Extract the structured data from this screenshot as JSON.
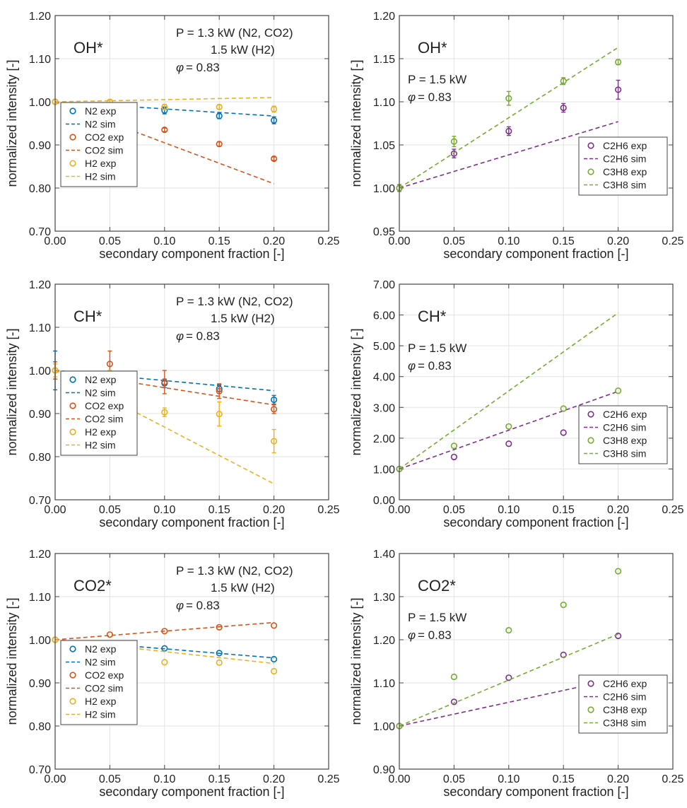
{
  "colors": {
    "N2": "#0072BD",
    "CO2": "#D95319",
    "H2": "#EDB120",
    "C2H6": "#7E2F8E",
    "C3H8": "#77AC30",
    "grid": "#e3e3e3",
    "axis": "#444444"
  },
  "chart_data": [
    {
      "type": "scatter",
      "id": "oh-dilutants",
      "species_label": "OH*",
      "annotation": [
        "P = 1.3 kW (N2, CO2)",
        "1.5 kW (H2)",
        "= 0.83"
      ],
      "phi_symbol": "φ",
      "xlabel": "secondary component fraction [-]",
      "ylabel": "normalized intensity [-]",
      "xlim": [
        0,
        0.25
      ],
      "ylim": [
        0.7,
        1.2
      ],
      "xticks": [
        "0.00",
        "0.05",
        "0.10",
        "0.15",
        "0.20",
        "0.25"
      ],
      "yticks": [
        "0.70",
        "0.80",
        "0.90",
        "1.00",
        "1.10",
        "1.20"
      ],
      "grid": true,
      "legend_position": "bottom-left",
      "series": [
        {
          "name": "N2 exp",
          "kind": "exp",
          "color_key": "N2",
          "x": [
            0,
            0.05,
            0.1,
            0.15,
            0.2
          ],
          "y": [
            1.0,
            0.983,
            0.98,
            0.967,
            0.957
          ],
          "err": [
            0.003,
            0.005,
            0.008,
            0.006,
            0.008
          ]
        },
        {
          "name": "N2 sim",
          "kind": "sim",
          "color_key": "N2",
          "x": [
            0,
            0.2
          ],
          "y": [
            1.0,
            0.967
          ]
        },
        {
          "name": "CO2 exp",
          "kind": "exp",
          "color_key": "CO2",
          "x": [
            0,
            0.05,
            0.1,
            0.15,
            0.2
          ],
          "y": [
            1.0,
            0.977,
            0.935,
            0.902,
            0.868
          ],
          "err": [
            0.003,
            0.004,
            0.004,
            0.005,
            0.004
          ]
        },
        {
          "name": "CO2 sim",
          "kind": "sim",
          "color_key": "CO2",
          "x": [
            0,
            0.2
          ],
          "y": [
            1.0,
            0.81
          ]
        },
        {
          "name": "H2 exp",
          "kind": "exp",
          "color_key": "H2",
          "x": [
            0,
            0.05,
            0.1,
            0.15,
            0.2
          ],
          "y": [
            1.0,
            1.0,
            0.988,
            0.988,
            0.983
          ],
          "err": [
            0.003,
            0.004,
            0.006,
            0.005,
            0.007
          ]
        },
        {
          "name": "H2 sim",
          "kind": "sim",
          "color_key": "H2",
          "x": [
            0,
            0.2
          ],
          "y": [
            1.0,
            1.01
          ]
        }
      ]
    },
    {
      "type": "scatter",
      "id": "oh-fuels",
      "species_label": "OH*",
      "annotation": [
        "P = 1.5 kW",
        "= 0.83"
      ],
      "phi_symbol": "φ",
      "xlabel": "secondary component fraction [-]",
      "ylabel": "normalized intensity [-]",
      "xlim": [
        0,
        0.25
      ],
      "ylim": [
        0.95,
        1.2
      ],
      "xticks": [
        "0.00",
        "0.05",
        "0.10",
        "0.15",
        "0.20",
        "0.25"
      ],
      "yticks": [
        "0.95",
        "1.00",
        "1.05",
        "1.10",
        "1.15",
        "1.20"
      ],
      "grid": true,
      "legend_position": "bottom-right",
      "series": [
        {
          "name": "C2H6 exp",
          "kind": "exp",
          "color_key": "C2H6",
          "x": [
            0,
            0.05,
            0.1,
            0.15,
            0.2
          ],
          "y": [
            1.0,
            1.04,
            1.066,
            1.093,
            1.114
          ],
          "err": [
            0.004,
            0.005,
            0.005,
            0.005,
            0.011
          ]
        },
        {
          "name": "C2H6 sim",
          "kind": "sim",
          "color_key": "C2H6",
          "x": [
            0,
            0.2
          ],
          "y": [
            1.0,
            1.077
          ]
        },
        {
          "name": "C3H8 exp",
          "kind": "exp",
          "color_key": "C3H8",
          "x": [
            0,
            0.05,
            0.1,
            0.15,
            0.2
          ],
          "y": [
            1.0,
            1.054,
            1.104,
            1.124,
            1.146
          ],
          "err": [
            0.004,
            0.006,
            0.008,
            0.004,
            0.003
          ]
        },
        {
          "name": "C3H8 sim",
          "kind": "sim",
          "color_key": "C3H8",
          "x": [
            0,
            0.2
          ],
          "y": [
            1.0,
            1.163
          ]
        }
      ]
    },
    {
      "type": "scatter",
      "id": "ch-dilutants",
      "species_label": "CH*",
      "annotation": [
        "P = 1.3 kW (N2, CO2)",
        "1.5 kW (H2)",
        "= 0.83"
      ],
      "phi_symbol": "φ",
      "xlabel": "secondary component fraction [-]",
      "ylabel": "normalized intensity [-]",
      "xlim": [
        0,
        0.25
      ],
      "ylim": [
        0.7,
        1.2
      ],
      "xticks": [
        "0.00",
        "0.05",
        "0.10",
        "0.15",
        "0.20",
        "0.25"
      ],
      "yticks": [
        "0.70",
        "0.80",
        "0.90",
        "1.00",
        "1.10",
        "1.20"
      ],
      "grid": true,
      "legend_position": "bottom-left",
      "series": [
        {
          "name": "N2 exp",
          "kind": "exp",
          "color_key": "N2",
          "x": [
            0,
            0.05,
            0.1,
            0.15,
            0.2
          ],
          "y": [
            1.0,
            0.98,
            0.97,
            0.957,
            0.932
          ],
          "err": [
            0.045,
            0.01,
            0.01,
            0.01,
            0.01
          ]
        },
        {
          "name": "N2 sim",
          "kind": "sim",
          "color_key": "N2",
          "x": [
            0,
            0.2
          ],
          "y": [
            1.0,
            0.953
          ]
        },
        {
          "name": "CO2 exp",
          "kind": "exp",
          "color_key": "CO2",
          "x": [
            0,
            0.05,
            0.1,
            0.15,
            0.2
          ],
          "y": [
            1.0,
            1.015,
            0.973,
            0.952,
            0.91
          ],
          "err": [
            0.02,
            0.03,
            0.027,
            0.017,
            0.01
          ]
        },
        {
          "name": "CO2 sim",
          "kind": "sim",
          "color_key": "CO2",
          "x": [
            0,
            0.2
          ],
          "y": [
            1.0,
            0.92
          ]
        },
        {
          "name": "H2 exp",
          "kind": "exp",
          "color_key": "H2",
          "x": [
            0,
            0.05,
            0.1,
            0.15,
            0.2
          ],
          "y": [
            1.0,
            0.975,
            0.903,
            0.899,
            0.836
          ],
          "err": [
            0.015,
            0.025,
            0.01,
            0.028,
            0.027
          ]
        },
        {
          "name": "H2 sim",
          "kind": "sim",
          "color_key": "H2",
          "x": [
            0,
            0.2
          ],
          "y": [
            1.0,
            0.737
          ]
        }
      ]
    },
    {
      "type": "scatter",
      "id": "ch-fuels",
      "species_label": "CH*",
      "annotation": [
        "P = 1.5 kW",
        "= 0.83"
      ],
      "phi_symbol": "φ",
      "xlabel": "secondary component fraction [-]",
      "ylabel": "normalized intensity [-]",
      "xlim": [
        0,
        0.25
      ],
      "ylim": [
        0,
        7
      ],
      "xticks": [
        "0.00",
        "0.05",
        "0.10",
        "0.15",
        "0.20",
        "0.25"
      ],
      "yticks": [
        "0.00",
        "1.00",
        "2.00",
        "3.00",
        "4.00",
        "5.00",
        "6.00",
        "7.00"
      ],
      "grid": true,
      "legend_position": "bottom-right",
      "series": [
        {
          "name": "C2H6 exp",
          "kind": "exp",
          "color_key": "C2H6",
          "x": [
            0,
            0.05,
            0.1,
            0.15,
            0.2
          ],
          "y": [
            1.0,
            1.39,
            1.82,
            2.18,
            2.51
          ],
          "err": [
            0.02,
            0.02,
            0.02,
            0.02,
            0.02
          ]
        },
        {
          "name": "C2H6 sim",
          "kind": "sim",
          "color_key": "C2H6",
          "x": [
            0,
            0.2
          ],
          "y": [
            1.0,
            3.52
          ]
        },
        {
          "name": "C3H8 exp",
          "kind": "exp",
          "color_key": "C3H8",
          "x": [
            0,
            0.05,
            0.1,
            0.15,
            0.2
          ],
          "y": [
            1.0,
            1.75,
            2.38,
            2.96,
            3.54
          ],
          "err": [
            0.02,
            0.02,
            0.02,
            0.02,
            0.02
          ]
        },
        {
          "name": "C3H8 sim",
          "kind": "sim",
          "color_key": "C3H8",
          "x": [
            0,
            0.2
          ],
          "y": [
            1.0,
            6.07
          ]
        }
      ]
    },
    {
      "type": "scatter",
      "id": "co2-dilutants",
      "species_label": "CO2*",
      "annotation": [
        "P = 1.3 kW (N2, CO2)",
        "1.5 kW (H2)",
        "= 0.83"
      ],
      "phi_symbol": "φ",
      "xlabel": "secondary component fraction [-]",
      "ylabel": "normalized intensity [-]",
      "xlim": [
        0,
        0.25
      ],
      "ylim": [
        0.7,
        1.2
      ],
      "xticks": [
        "0.00",
        "0.05",
        "0.10",
        "0.15",
        "0.20",
        "0.25"
      ],
      "yticks": [
        "0.70",
        "0.80",
        "0.90",
        "1.00",
        "1.10",
        "1.20"
      ],
      "grid": true,
      "legend_position": "bottom-left",
      "series": [
        {
          "name": "N2 exp",
          "kind": "exp",
          "color_key": "N2",
          "x": [
            0,
            0.05,
            0.1,
            0.15,
            0.2
          ],
          "y": [
            1.0,
            0.99,
            0.98,
            0.969,
            0.955
          ],
          "err": [
            0.002,
            0.002,
            0.002,
            0.002,
            0.002
          ]
        },
        {
          "name": "N2 sim",
          "kind": "sim",
          "color_key": "N2",
          "x": [
            0,
            0.2
          ],
          "y": [
            1.0,
            0.958
          ]
        },
        {
          "name": "CO2 exp",
          "kind": "exp",
          "color_key": "CO2",
          "x": [
            0,
            0.05,
            0.1,
            0.15,
            0.2
          ],
          "y": [
            1.0,
            1.012,
            1.02,
            1.029,
            1.033
          ],
          "err": [
            0.002,
            0.002,
            0.002,
            0.002,
            0.002
          ]
        },
        {
          "name": "CO2 sim",
          "kind": "sim",
          "color_key": "CO2",
          "x": [
            0,
            0.2
          ],
          "y": [
            1.0,
            1.04
          ]
        },
        {
          "name": "H2 exp",
          "kind": "exp",
          "color_key": "H2",
          "x": [
            0,
            0.05,
            0.1,
            0.15,
            0.2
          ],
          "y": [
            1.0,
            0.963,
            0.948,
            0.947,
            0.927
          ],
          "err": [
            0.002,
            0.002,
            0.002,
            0.002,
            0.002
          ]
        },
        {
          "name": "H2 sim",
          "kind": "sim",
          "color_key": "H2",
          "x": [
            0,
            0.2
          ],
          "y": [
            1.0,
            0.945
          ]
        }
      ]
    },
    {
      "type": "scatter",
      "id": "co2-fuels",
      "species_label": "CO2*",
      "annotation": [
        "P = 1.5 kW",
        "= 0.83"
      ],
      "phi_symbol": "φ",
      "xlabel": "secondary component fraction [-]",
      "ylabel": "normalized intensity [-]",
      "xlim": [
        0,
        0.25
      ],
      "ylim": [
        0.9,
        1.4
      ],
      "xticks": [
        "0.00",
        "0.05",
        "0.10",
        "0.15",
        "0.20",
        "0.25"
      ],
      "yticks": [
        "0.90",
        "1.00",
        "1.10",
        "1.20",
        "1.30",
        "1.40"
      ],
      "grid": true,
      "legend_position": "bottom-right",
      "series": [
        {
          "name": "C2H6 exp",
          "kind": "exp",
          "color_key": "C2H6",
          "x": [
            0,
            0.05,
            0.1,
            0.15,
            0.2
          ],
          "y": [
            1.0,
            1.056,
            1.112,
            1.165,
            1.209
          ],
          "err": [
            0.002,
            0.002,
            0.002,
            0.002,
            0.002
          ]
        },
        {
          "name": "C2H6 sim",
          "kind": "sim",
          "color_key": "C2H6",
          "x": [
            0,
            0.2
          ],
          "y": [
            1.0,
            1.11
          ]
        },
        {
          "name": "C3H8 exp",
          "kind": "exp",
          "color_key": "C3H8",
          "x": [
            0,
            0.05,
            0.1,
            0.15,
            0.2
          ],
          "y": [
            1.0,
            1.114,
            1.222,
            1.281,
            1.359
          ],
          "err": [
            0.002,
            0.002,
            0.002,
            0.002,
            0.002
          ]
        },
        {
          "name": "C3H8 sim",
          "kind": "sim",
          "color_key": "C3H8",
          "x": [
            0,
            0.2
          ],
          "y": [
            1.0,
            1.213
          ]
        }
      ]
    }
  ]
}
